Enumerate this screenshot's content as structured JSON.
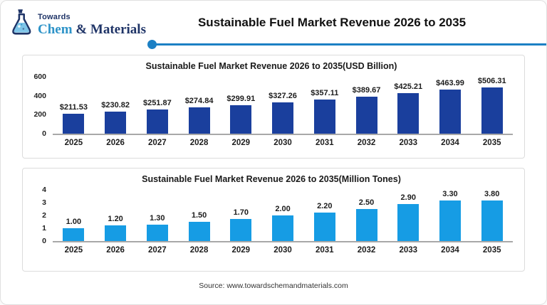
{
  "header": {
    "logo": {
      "top_text": "Towards",
      "brand_chem": "Chem",
      "brand_amp": " & ",
      "brand_materials": "Materials"
    },
    "title": "Sustainable Fuel Market Revenue 2026 to 2035"
  },
  "colors": {
    "accent_line": "#1c80c4",
    "navy_bar": "#1a3f9d",
    "sky_bar": "#169ce4",
    "logo_navy": "#1f3467",
    "logo_blue": "#2d93c8"
  },
  "chart_data": [
    {
      "type": "bar",
      "title": "Sustainable Fuel Market Revenue 2026 to 2035(USD Billion)",
      "categories": [
        "2025",
        "2026",
        "2027",
        "2028",
        "2029",
        "2030",
        "2031",
        "2032",
        "2033",
        "2034",
        "2035"
      ],
      "values": [
        211.53,
        230.82,
        251.87,
        274.84,
        299.91,
        327.26,
        357.11,
        389.67,
        425.21,
        463.99,
        506.31
      ],
      "labels": [
        "$211.53",
        "$230.82",
        "$251.87",
        "$274.84",
        "$299.91",
        "$327.26",
        "$357.11",
        "$389.67",
        "$425.21",
        "$463.99",
        "$506.31"
      ],
      "xlabel": "",
      "ylabel": "",
      "yticks": [
        0,
        200,
        400,
        600
      ],
      "ylim": [
        0,
        600
      ],
      "bar_color": "#1a3f9d",
      "grid": false,
      "legend": "none"
    },
    {
      "type": "bar",
      "title": "Sustainable Fuel Market Revenue 2026 to 2035(Million Tones)",
      "categories": [
        "2025",
        "2026",
        "2027",
        "2028",
        "2029",
        "2030",
        "2031",
        "2032",
        "2033",
        "2034",
        "2035"
      ],
      "values": [
        1.0,
        1.2,
        1.3,
        1.5,
        1.7,
        2.0,
        2.2,
        2.5,
        2.9,
        3.3,
        3.8
      ],
      "labels": [
        "1.00",
        "1.20",
        "1.30",
        "1.50",
        "1.70",
        "2.00",
        "2.20",
        "2.50",
        "2.90",
        "3.30",
        "3.80"
      ],
      "xlabel": "",
      "ylabel": "",
      "yticks": [
        0,
        1,
        2,
        3,
        4
      ],
      "ylim": [
        0,
        4
      ],
      "bar_color": "#169ce4",
      "grid": false,
      "legend": "none"
    }
  ],
  "footer": {
    "source": "Source: www.towardschemandmaterials.com"
  }
}
